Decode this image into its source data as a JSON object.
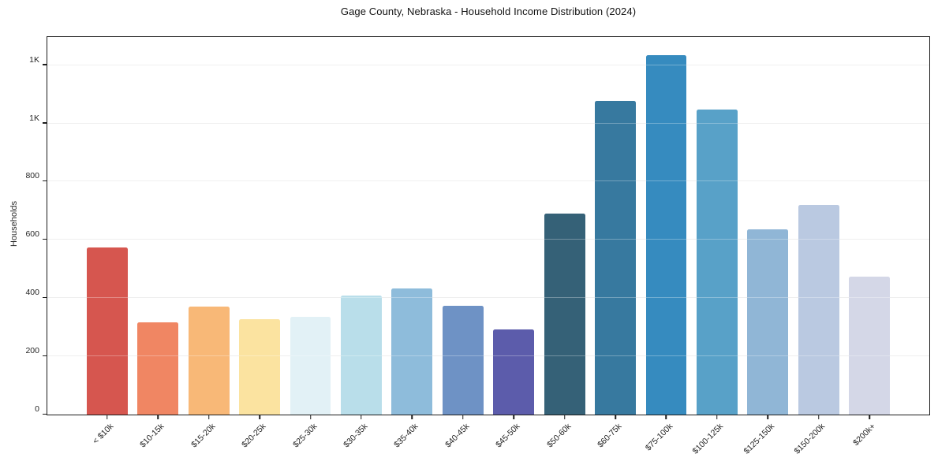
{
  "chart_data": {
    "type": "bar",
    "title": "Gage County, Nebraska - Household Income Distribution (2024)",
    "xlabel": "",
    "ylabel": "Households",
    "categories": [
      "< $10k",
      "$10-15k",
      "$15-20k",
      "$20-25k",
      "$25-30k",
      "$30-35k",
      "$35-40k",
      "$40-45k",
      "$45-50k",
      "$50-60k",
      "$60-75k",
      "$75-100k",
      "$100-125k",
      "$125-150k",
      "$150-200k",
      "$200k+"
    ],
    "values": [
      575,
      318,
      370,
      328,
      337,
      410,
      434,
      373,
      292,
      690,
      1078,
      1234,
      1048,
      636,
      720,
      473
    ],
    "bar_colors": [
      "#d6564f",
      "#f08663",
      "#f8b877",
      "#fbe3a0",
      "#e2f1f6",
      "#b9deea",
      "#8ebcdb",
      "#6e92c5",
      "#5c5cab",
      "#356177",
      "#37799f",
      "#368bbf",
      "#58a1c8",
      "#90b6d6",
      "#bac9e1",
      "#d4d7e7"
    ],
    "ylim": [
      0,
      1294
    ],
    "yticks": [
      {
        "value": 0,
        "label": "0"
      },
      {
        "value": 200,
        "label": "200"
      },
      {
        "value": 400,
        "label": "400"
      },
      {
        "value": 600,
        "label": "600"
      },
      {
        "value": 800,
        "label": "800"
      },
      {
        "value": 1000,
        "label": "1K"
      },
      {
        "value": 1200,
        "label": "1K"
      }
    ],
    "grid": "horizontal",
    "legend": false
  }
}
